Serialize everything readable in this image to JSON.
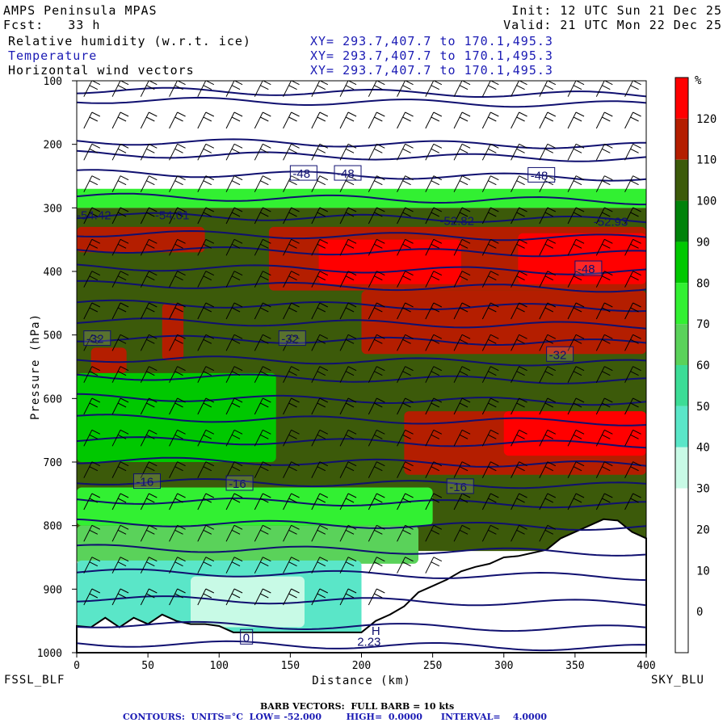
{
  "header": {
    "title": "AMPS Peninsula MPAS",
    "fcst": "Fcst:   33 h",
    "init": "Init: 12 UTC Sun 21 Dec 25",
    "valid": "Valid: 21 UTC Mon 22 Dec 25",
    "fields": [
      {
        "name": "Relative humidity (w.r.t. ice)",
        "xy": "XY= 293.7,407.7 to 170.1,495.3"
      },
      {
        "name": "Temperature",
        "xy": "XY= 293.7,407.7 to 170.1,495.3"
      },
      {
        "name": "Horizontal wind vectors",
        "xy": "XY= 293.7,407.7 to 170.1,495.3"
      }
    ]
  },
  "footer": {
    "left_station": "FSSL_BLF",
    "right_station": "SKY_BLU",
    "barb_note": "BARB VECTORS:  FULL BARB = 10 kts",
    "contour_note": "CONTOURS:  UNITS=°C  LOW= -52.000        HIGH=  0.0000      INTERVAL=    4.0000"
  },
  "colors": {
    "temperature_contour": "#101070",
    "wind_barb": "#000000",
    "terrain": "#ffffff"
  },
  "chart_data": {
    "type": "heatmap",
    "title": "Relative humidity (w.r.t. ice), Temperature, Horizontal wind vectors",
    "xlabel": "Distance (km)",
    "ylabel": "Pressure (hPa)",
    "xlim": [
      0,
      400
    ],
    "ylim": [
      1000,
      100
    ],
    "xticks": [
      0,
      50,
      100,
      150,
      200,
      250,
      300,
      350,
      400
    ],
    "yticks": [
      100,
      200,
      300,
      400,
      500,
      600,
      700,
      800,
      900,
      1000
    ],
    "colorbar": {
      "unit": "%",
      "ticks": [
        0,
        10,
        20,
        30,
        40,
        50,
        60,
        70,
        80,
        90,
        100,
        110,
        120
      ],
      "bins": [
        {
          "min": -10,
          "max": 0,
          "color": "#ffffff"
        },
        {
          "min": 0,
          "max": 10,
          "color": "#ffffff"
        },
        {
          "min": 10,
          "max": 20,
          "color": "#ffffff"
        },
        {
          "min": 20,
          "max": 30,
          "color": "#ffffff"
        },
        {
          "min": 30,
          "max": 40,
          "color": "#c8fae6"
        },
        {
          "min": 40,
          "max": 50,
          "color": "#5ae6c8"
        },
        {
          "min": 50,
          "max": 60,
          "color": "#3cdc96"
        },
        {
          "min": 60,
          "max": 70,
          "color": "#5ad25a"
        },
        {
          "min": 70,
          "max": 80,
          "color": "#32f032"
        },
        {
          "min": 80,
          "max": 90,
          "color": "#00c800"
        },
        {
          "min": 90,
          "max": 100,
          "color": "#00820a"
        },
        {
          "min": 100,
          "max": 110,
          "color": "#3c5a0a"
        },
        {
          "min": 110,
          "max": 120,
          "color": "#b41e00"
        },
        {
          "min": 120,
          "max": 130,
          "color": "#ff0000"
        }
      ]
    },
    "temperature_contours": [
      {
        "p": 985,
        "label": ""
      },
      {
        "p": 955,
        "label": ""
      },
      {
        "p": 915,
        "label": ""
      },
      {
        "p": 873,
        "label": ""
      },
      {
        "p": 835,
        "label": ""
      },
      {
        "p": 795,
        "label": ""
      },
      {
        "p": 760,
        "label": ""
      },
      {
        "p": 730,
        "label": "-16"
      },
      {
        "p": 697,
        "label": ""
      },
      {
        "p": 665,
        "label": ""
      },
      {
        "p": 630,
        "label": ""
      },
      {
        "p": 598,
        "label": ""
      },
      {
        "p": 565,
        "label": ""
      },
      {
        "p": 537,
        "label": ""
      },
      {
        "p": 505,
        "label": "-32"
      },
      {
        "p": 478,
        "label": ""
      },
      {
        "p": 450,
        "label": ""
      },
      {
        "p": 420,
        "label": ""
      },
      {
        "p": 393,
        "label": ""
      },
      {
        "p": 365,
        "label": ""
      },
      {
        "p": 340,
        "label": ""
      },
      {
        "p": 312,
        "label": ""
      },
      {
        "p": 282,
        "label": ""
      },
      {
        "p": 245,
        "label": "-48"
      },
      {
        "p": 215,
        "label": ""
      },
      {
        "p": 195,
        "label": ""
      },
      {
        "p": 130,
        "label": ""
      },
      {
        "p": 115,
        "label": ""
      }
    ],
    "contour_labels": [
      {
        "x": 5,
        "p": 505,
        "text": "-32"
      },
      {
        "x": 142,
        "p": 505,
        "text": "-32"
      },
      {
        "x": 330,
        "p": 530,
        "text": "-32"
      },
      {
        "x": 40,
        "p": 730,
        "text": "-16"
      },
      {
        "x": 105,
        "p": 733,
        "text": "-16"
      },
      {
        "x": 260,
        "p": 738,
        "text": "-16"
      },
      {
        "x": 150,
        "p": 245,
        "text": "-48"
      },
      {
        "x": 181,
        "p": 245,
        "text": "-48"
      },
      {
        "x": 317,
        "p": 248,
        "text": "-48"
      },
      {
        "x": 350,
        "p": 395,
        "text": "-48"
      },
      {
        "x": 115,
        "p": 975,
        "text": "0"
      }
    ],
    "extrema_labels": [
      {
        "x": 0,
        "p": 318,
        "text": "-54.42"
      },
      {
        "x": 55,
        "p": 318,
        "text": "-54.01"
      },
      {
        "x": 255,
        "p": 327,
        "text": "-52.82"
      },
      {
        "x": 363,
        "p": 328,
        "text": "-52.93"
      },
      {
        "x": 207,
        "p": 972,
        "text": "H"
      },
      {
        "x": 197,
        "p": 989,
        "text": "2.23"
      }
    ],
    "terrain_surface_hPa": {
      "x": [
        0,
        10,
        20,
        30,
        40,
        50,
        60,
        70,
        80,
        90,
        100,
        110,
        130,
        150,
        180,
        200,
        210,
        220,
        230,
        240,
        250,
        260,
        270,
        280,
        290,
        300,
        310,
        320,
        330,
        340,
        350,
        360,
        370,
        380,
        390,
        400
      ],
      "p": [
        958,
        960,
        945,
        960,
        945,
        955,
        940,
        950,
        955,
        955,
        958,
        968,
        968,
        968,
        968,
        968,
        950,
        940,
        927,
        905,
        895,
        885,
        872,
        865,
        860,
        850,
        848,
        843,
        838,
        820,
        810,
        800,
        790,
        792,
        810,
        820
      ]
    },
    "rh_regions": [
      {
        "x0": 0,
        "x1": 400,
        "p0": 100,
        "p1": 270,
        "bin": 0
      },
      {
        "x0": 0,
        "x1": 400,
        "p0": 270,
        "p1": 300,
        "bin": 8
      },
      {
        "x0": 0,
        "x1": 400,
        "p0": 300,
        "p1": 840,
        "bin": 11
      },
      {
        "x0": 0,
        "x1": 90,
        "p0": 330,
        "p1": 370,
        "bin": 12
      },
      {
        "x0": 135,
        "x1": 400,
        "p0": 330,
        "p1": 430,
        "bin": 12
      },
      {
        "x0": 170,
        "x1": 270,
        "p0": 350,
        "p1": 420,
        "bin": 13
      },
      {
        "x0": 310,
        "x1": 400,
        "p0": 340,
        "p1": 420,
        "bin": 13
      },
      {
        "x0": 60,
        "x1": 75,
        "p0": 450,
        "p1": 540,
        "bin": 12
      },
      {
        "x0": 10,
        "x1": 35,
        "p0": 520,
        "p1": 560,
        "bin": 12
      },
      {
        "x0": 200,
        "x1": 400,
        "p0": 430,
        "p1": 530,
        "bin": 12
      },
      {
        "x0": 230,
        "x1": 400,
        "p0": 620,
        "p1": 720,
        "bin": 12
      },
      {
        "x0": 300,
        "x1": 400,
        "p0": 620,
        "p1": 690,
        "bin": 13
      },
      {
        "x0": 0,
        "x1": 140,
        "p0": 560,
        "p1": 700,
        "bin": 9
      },
      {
        "x0": 0,
        "x1": 250,
        "p0": 740,
        "p1": 800,
        "bin": 8
      },
      {
        "x0": 0,
        "x1": 240,
        "p0": 800,
        "p1": 860,
        "bin": 7
      },
      {
        "x0": 0,
        "x1": 200,
        "p0": 855,
        "p1": 975,
        "bin": 5
      },
      {
        "x0": 80,
        "x1": 160,
        "p0": 880,
        "p1": 960,
        "bin": 4
      }
    ],
    "wind_barbs": {
      "x_start": 5,
      "x_step": 20,
      "p_levels": [
        125,
        175,
        225,
        275,
        325,
        375,
        425,
        475,
        525,
        575,
        625,
        675,
        725,
        775,
        825,
        875,
        925
      ],
      "speed_kts_typical": 20
    }
  }
}
